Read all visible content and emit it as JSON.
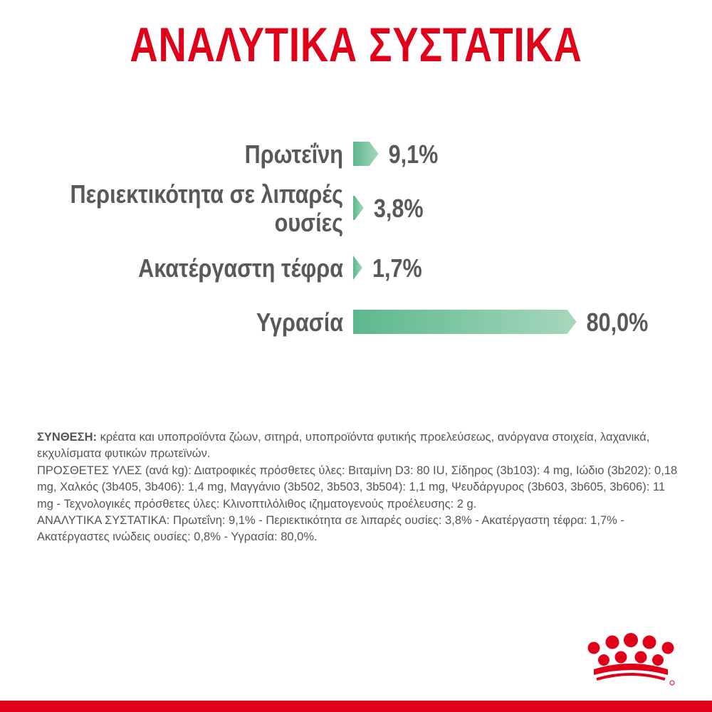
{
  "page_title": "ΑΝΑΛΥΤΙΚΑ ΣΥΣΤΑΤΙΚΑ",
  "chart_data": {
    "type": "bar",
    "orientation": "horizontal",
    "title": "ΑΝΑΛΥΤΙΚΑ ΣΥΣΤΑΤΙΚΑ",
    "categories": [
      [
        "Πρωτεΐνη"
      ],
      [
        "Περιεκτικότητα σε λιπαρές",
        "ουσίες"
      ],
      [
        "Ακατέργαστη τέφρα"
      ],
      [
        "Υγρασία"
      ]
    ],
    "values": [
      9.1,
      3.8,
      1.7,
      80.0
    ],
    "value_labels": [
      "9,1%",
      "3,8%",
      "1,7%",
      "80,0%"
    ],
    "unit": "%",
    "xlim": [
      0,
      100
    ],
    "bar_gradient": [
      "#5cb88d",
      "#a6d7bd"
    ],
    "label_color": "#58595b",
    "grid": false,
    "legend": "none"
  },
  "composition": {
    "heading": "ΣΥΝΘΕΣΗ:",
    "text": " κρέατα και υποπροϊόντα ζώων, σιτηρά, υποπροϊόντα φυτικής προελεύσεως, ανόργανα στοιχεία, λαχανικά, εκχυλίσματα φυτικών πρωτεϊνών.",
    "additives": "ΠΡΟΣΘΕΤΕΣ ΥΛΕΣ (ανά kg): Διατροφικές πρόσθετες ύλες: Βιταμίνη D3: 80 IU, Σίδηρος (3b103): 4 mg, Ιώδιο (3b202): 0,18 mg, Χαλκός (3b405, 3b406): 1,4 mg, Μαγγάνιο (3b502, 3b503, 3b504): 1,1 mg, Ψευδάργυρος (3b603, 3b605, 3b606): 11 mg - Τεχνολογικές πρόσθετες ύλες: Κλινοπτιλόλιθος ιζηματογενούς προέλευσης: 2 g.",
    "analytical": "ΑΝΑΛΥΤΙΚΑ ΣΥΣΤΑΤΙΚΑ: Πρωτεΐνη: 9,1% - Περιεκτικότητα σε λιπαρές ουσίες: 3,8% - Ακατέργαστη τέφρα: 1,7% - Ακατέργαστες ινώδεις ουσίες: 0,8% - Υγρασία: 80,0%."
  },
  "colors": {
    "brand_red": "#e1001a",
    "text_gray": "#58595b",
    "bar_green_dark": "#5cb88d",
    "bar_green_light": "#a6d7bd"
  },
  "logo": {
    "icon": "royal-canin-crown-icon"
  }
}
